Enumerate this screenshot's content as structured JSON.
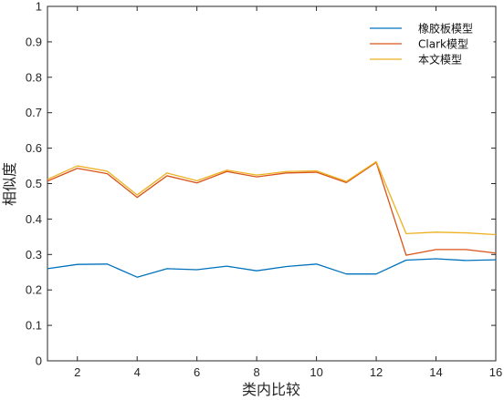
{
  "chart_data": {
    "type": "line",
    "title": "",
    "xlabel": "类内比较",
    "ylabel": "相似度",
    "xlim": [
      1,
      16
    ],
    "ylim": [
      0,
      1
    ],
    "xticks": [
      2,
      4,
      6,
      8,
      10,
      12,
      14,
      16
    ],
    "yticks": [
      0,
      0.1,
      0.2,
      0.3,
      0.4,
      0.5,
      0.6,
      0.7,
      0.8,
      0.9,
      1
    ],
    "ytick_labels": [
      "0",
      "0.1",
      "0.2",
      "0.3",
      "0.4",
      "0.5",
      "0.6",
      "0.7",
      "0.8",
      "0.9",
      "1"
    ],
    "grid": false,
    "legend_position": "top-right",
    "x": [
      1,
      2,
      3,
      4,
      5,
      6,
      7,
      8,
      9,
      10,
      11,
      12,
      13,
      14,
      15,
      16
    ],
    "series": [
      {
        "name": "橡胶板模型",
        "color": "#0072BD",
        "values": [
          0.26,
          0.272,
          0.273,
          0.236,
          0.26,
          0.257,
          0.267,
          0.254,
          0.266,
          0.273,
          0.245,
          0.245,
          0.284,
          0.288,
          0.283,
          0.285
        ]
      },
      {
        "name": "Clark模型",
        "color": "#D95319",
        "values": [
          0.507,
          0.543,
          0.528,
          0.461,
          0.522,
          0.502,
          0.534,
          0.519,
          0.53,
          0.532,
          0.503,
          0.56,
          0.298,
          0.314,
          0.314,
          0.304
        ]
      },
      {
        "name": "本文模型",
        "color": "#EDB120",
        "values": [
          0.512,
          0.55,
          0.535,
          0.468,
          0.53,
          0.508,
          0.538,
          0.524,
          0.534,
          0.536,
          0.506,
          0.562,
          0.359,
          0.363,
          0.361,
          0.356
        ]
      }
    ]
  }
}
